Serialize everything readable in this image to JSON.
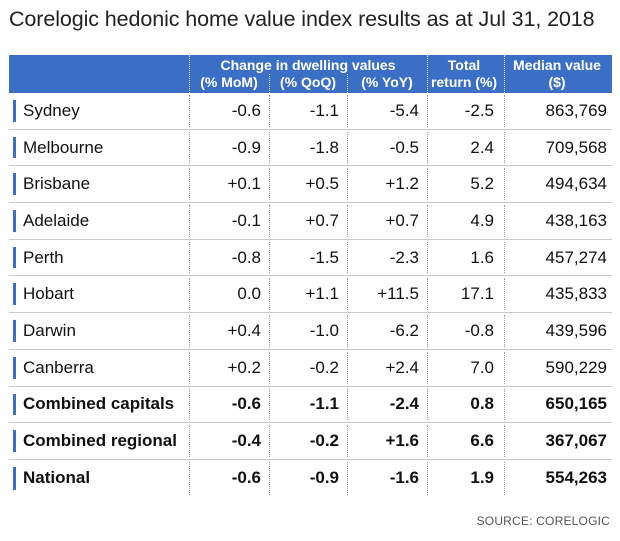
{
  "title": "Corelogic hedonic home value index results as at Jul 31, 2018",
  "accent_color": "#3b6fc6",
  "chart_data": {
    "type": "table",
    "group_header": "Change in dwelling values",
    "columns": [
      "(% MoM)",
      "(% QoQ)",
      "(% YoY)",
      "Total return (%)",
      "Median value ($)"
    ],
    "total_return_label": [
      "Total",
      "return (%)"
    ],
    "median_label": [
      "Median value",
      "($)"
    ],
    "rows": [
      {
        "name": "Sydney",
        "values": [
          "-0.6",
          "-1.1",
          "-5.4",
          "-2.5",
          "863,769"
        ],
        "bold": false
      },
      {
        "name": "Melbourne",
        "values": [
          "-0.9",
          "-1.8",
          "-0.5",
          "2.4",
          "709,568"
        ],
        "bold": false
      },
      {
        "name": "Brisbane",
        "values": [
          "+0.1",
          "+0.5",
          "+1.2",
          "5.2",
          "494,634"
        ],
        "bold": false
      },
      {
        "name": "Adelaide",
        "values": [
          "-0.1",
          "+0.7",
          "+0.7",
          "4.9",
          "438,163"
        ],
        "bold": false
      },
      {
        "name": "Perth",
        "values": [
          "-0.8",
          "-1.5",
          "-2.3",
          "1.6",
          "457,274"
        ],
        "bold": false
      },
      {
        "name": "Hobart",
        "values": [
          "0.0",
          "+1.1",
          "+11.5",
          "17.1",
          "435,833"
        ],
        "bold": false
      },
      {
        "name": "Darwin",
        "values": [
          "+0.4",
          "-1.0",
          "-6.2",
          "-0.8",
          "439,596"
        ],
        "bold": false
      },
      {
        "name": "Canberra",
        "values": [
          "+0.2",
          "-0.2",
          "+2.4",
          "7.0",
          "590,229"
        ],
        "bold": false
      },
      {
        "name": "Combined capitals",
        "values": [
          "-0.6",
          "-1.1",
          "-2.4",
          "0.8",
          "650,165"
        ],
        "bold": true
      },
      {
        "name": "Combined regional",
        "values": [
          "-0.4",
          "-0.2",
          "+1.6",
          "6.6",
          "367,067"
        ],
        "bold": true
      },
      {
        "name": "National",
        "values": [
          "-0.6",
          "-0.9",
          "-1.6",
          "1.9",
          "554,263"
        ],
        "bold": true
      }
    ]
  },
  "source": "SOURCE: CORELOGIC"
}
